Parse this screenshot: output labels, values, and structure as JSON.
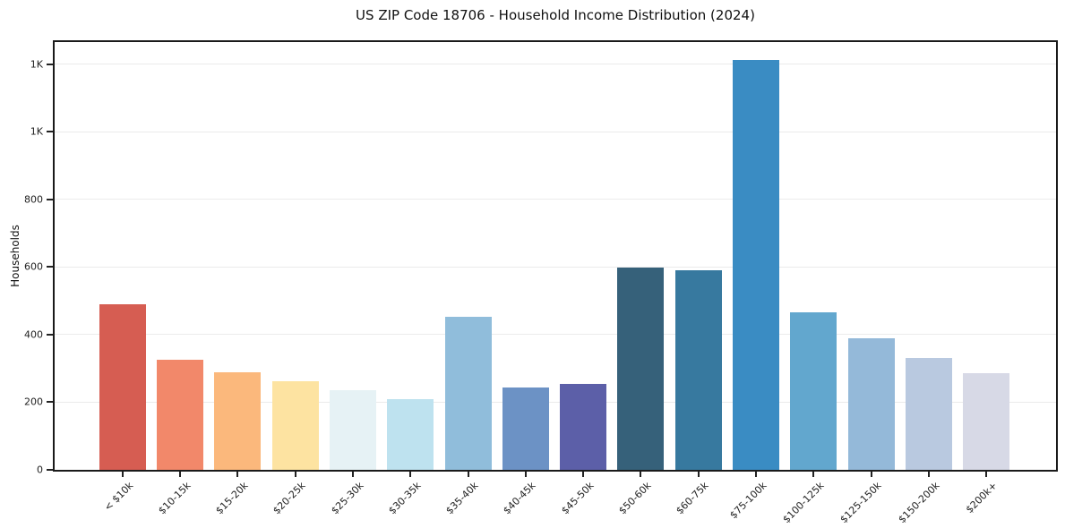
{
  "chart_data": {
    "type": "bar",
    "title": "US ZIP Code 18706 - Household Income Distribution (2024)",
    "xlabel": "",
    "ylabel": "Households",
    "categories": [
      "< $10k",
      "$10-15k",
      "$15-20k",
      "$20-25k",
      "$25-30k",
      "$30-35k",
      "$35-40k",
      "$40-45k",
      "$45-50k",
      "$50-60k",
      "$60-75k",
      "$75-100k",
      "$100-125k",
      "$125-150k",
      "$150-200k",
      "$200k+"
    ],
    "values": [
      490,
      327,
      289,
      262,
      235,
      209,
      453,
      245,
      254,
      598,
      590,
      1212,
      465,
      390,
      330,
      286
    ],
    "bar_colors": [
      "#d65d52",
      "#f2886a",
      "#fbb87c",
      "#fde3a1",
      "#e6f2f5",
      "#bee2ef",
      "#90bddb",
      "#6c92c5",
      "#5c5fa8",
      "#36617a",
      "#37799f",
      "#3a8cc3",
      "#62a7ce",
      "#94b9d9",
      "#b9c9e0",
      "#d7d9e6"
    ],
    "ylim": [
      0,
      1266
    ],
    "yticks": [
      {
        "value": 0,
        "label": "0"
      },
      {
        "value": 200,
        "label": "200"
      },
      {
        "value": 400,
        "label": "400"
      },
      {
        "value": 600,
        "label": "600"
      },
      {
        "value": 800,
        "label": "800"
      },
      {
        "value": 1000,
        "label": "1K"
      },
      {
        "value": 1200,
        "label": "1K"
      }
    ],
    "grid": "horizontal",
    "legend": "none",
    "background": "#ffffff",
    "spine_color": "#1a1a1a",
    "gridline_color": "#ebebeb"
  }
}
